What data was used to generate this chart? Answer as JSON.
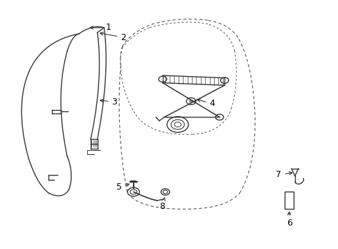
{
  "background_color": "#ffffff",
  "line_color": "#333333",
  "dashed_color": "#555555",
  "label_color": "#000000",
  "fig_width": 4.89,
  "fig_height": 3.6,
  "dpi": 100
}
